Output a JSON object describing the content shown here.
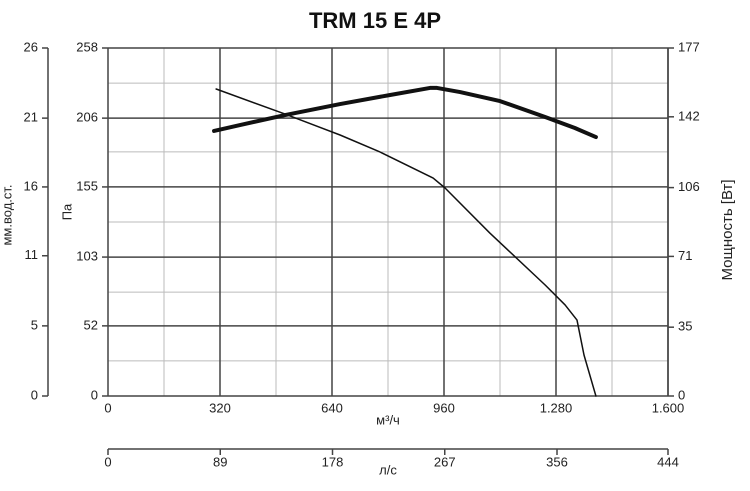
{
  "chart_data": {
    "type": "line",
    "title": "TRM 15 E 4P",
    "xlabel": "м³/ч",
    "ylabel": "Па",
    "y2label": "Мощность [Вт]",
    "y3label": "мм.вод.ст.",
    "x2label": "л/с",
    "xlim": [
      0,
      1600
    ],
    "xticks": [
      0,
      320,
      640,
      960,
      {
        "value": 1280,
        "label": "1.280"
      },
      {
        "value": 1600,
        "label": "1.600"
      }
    ],
    "xminor": [
      160,
      480,
      800,
      1120,
      1440
    ],
    "ylim": [
      0,
      258
    ],
    "yticks": [
      0,
      52,
      103,
      155,
      206,
      258
    ],
    "yminor": [
      26,
      77,
      129,
      181,
      232
    ],
    "y2lim": [
      0,
      177
    ],
    "y2ticks": [
      0,
      35,
      71,
      106,
      142,
      177
    ],
    "y3lim": [
      0,
      26.3
    ],
    "y3ticks": [
      0,
      {
        "value": 5.3,
        "label": "5"
      },
      {
        "value": 10.6,
        "label": "11"
      },
      {
        "value": 15.8,
        "label": "16"
      },
      21,
      {
        "value": 26.3,
        "label": "26"
      }
    ],
    "x2lim": [
      0,
      444
    ],
    "x2ticks": [
      0,
      89,
      178,
      267,
      356,
      444
    ],
    "grid": true,
    "series": [
      {
        "color": "#111111",
        "width": 1.5,
        "x": [
          309,
          506,
          663,
          777,
          929,
          963,
          1091,
          1249,
          1306,
          1340,
          1360,
          1394
        ],
        "values": [
          227.6,
          209,
          193.5,
          180.9,
          161.6,
          154.2,
          120.8,
          82.3,
          67.5,
          56.3,
          30.4,
          0
        ]
      },
      {
        "color": "#111111",
        "width": 4,
        "axis": "y2",
        "x": [
          303,
          377,
          506,
          663,
          806,
          920,
          940,
          1006,
          1120,
          1249,
          1334,
          1394
        ],
        "values": [
          134.8,
          137.8,
          142.9,
          148.5,
          153.1,
          156.7,
          156.7,
          154.6,
          150,
          141.9,
          136.3,
          131.7
        ]
      }
    ]
  }
}
